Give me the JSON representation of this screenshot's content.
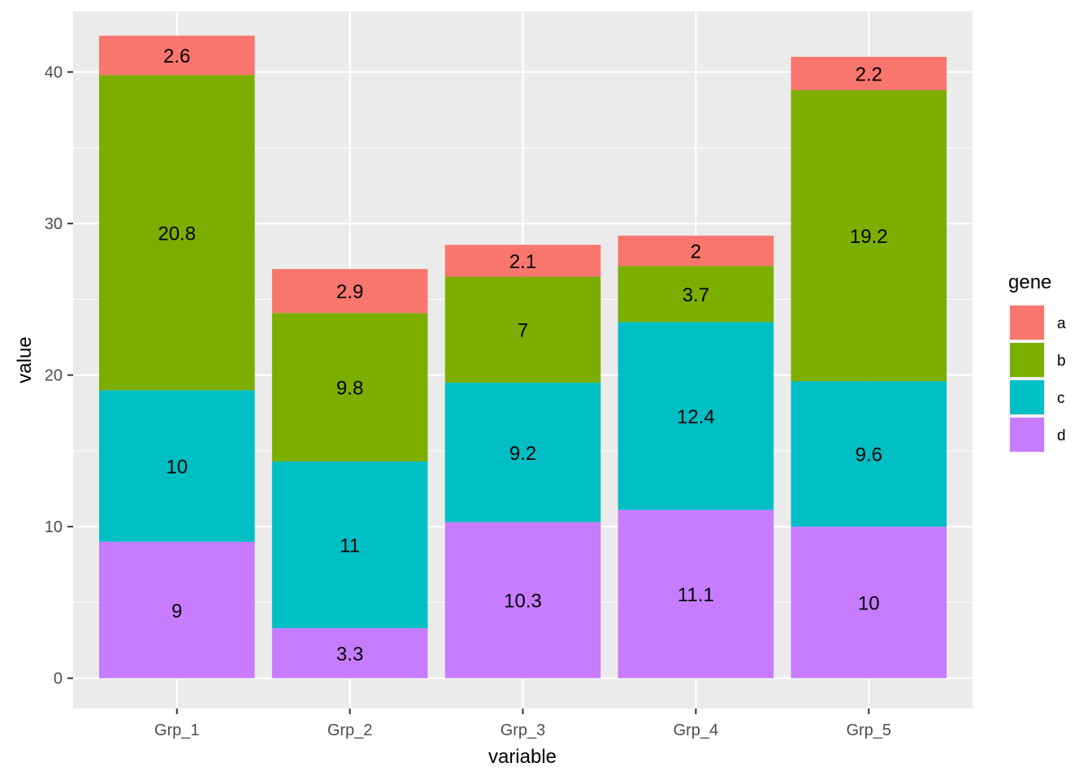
{
  "chart_data": {
    "type": "bar",
    "stacked": true,
    "categories": [
      "Grp_1",
      "Grp_2",
      "Grp_3",
      "Grp_4",
      "Grp_5"
    ],
    "series": [
      {
        "name": "a",
        "values": [
          2.6,
          2.9,
          2.1,
          2,
          2.2
        ],
        "labels": [
          "2.6",
          "2.9",
          "2.1",
          "2",
          "2.2"
        ]
      },
      {
        "name": "b",
        "values": [
          20.8,
          9.8,
          7,
          3.7,
          19.2
        ],
        "labels": [
          "20.8",
          "9.8",
          "7",
          "3.7",
          "19.2"
        ]
      },
      {
        "name": "c",
        "values": [
          10,
          11,
          9.2,
          12.4,
          9.6
        ],
        "labels": [
          "10",
          "11",
          "9.2",
          "12.4",
          "9.6"
        ]
      },
      {
        "name": "d",
        "values": [
          9,
          3.3,
          10.3,
          11.1,
          10
        ],
        "labels": [
          "9",
          "3.3",
          "10.3",
          "11.1",
          "10"
        ]
      }
    ],
    "stack_order_bottom_to_top": [
      "d",
      "c",
      "b",
      "a"
    ],
    "xlabel": "variable",
    "ylabel": "value",
    "ylim": [
      -2,
      44
    ],
    "yticks": [
      0,
      10,
      20,
      30,
      40
    ],
    "ytick_labels": [
      "0",
      "10",
      "20",
      "30",
      "40"
    ],
    "grid": true,
    "legend": {
      "title": "gene",
      "position": "right",
      "entries": [
        "a",
        "b",
        "c",
        "d"
      ]
    },
    "colors": {
      "a": "#F8766D",
      "b": "#7CAE00",
      "c": "#00BFC4",
      "d": "#C77CFF"
    },
    "panel_background": "#EBEBEB",
    "grid_color": "#FFFFFF"
  }
}
